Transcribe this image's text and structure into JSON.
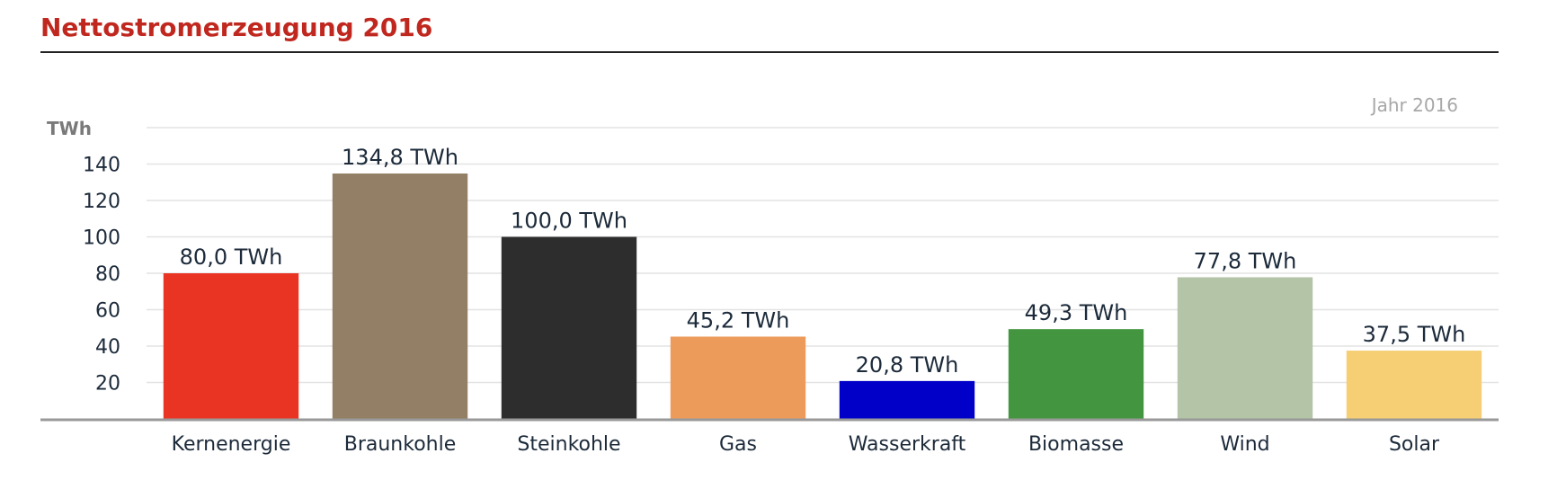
{
  "chart_data": {
    "type": "bar",
    "title": "Nettostromerzeugung 2016",
    "ylabel": "TWh",
    "period_label": "Jahr 2016",
    "categories": [
      "Kernenergie",
      "Braunkohle",
      "Steinkohle",
      "Gas",
      "Wasserkraft",
      "Biomasse",
      "Wind",
      "Solar"
    ],
    "values": [
      80.0,
      134.8,
      100.0,
      45.2,
      20.8,
      49.3,
      77.8,
      37.5
    ],
    "data_labels": [
      "80,0 TWh",
      "134,8 TWh",
      "100,0 TWh",
      "45,2 TWh",
      "20,8 TWh",
      "49,3 TWh",
      "77,8 TWh",
      "37,5 TWh"
    ],
    "colors": [
      "#e93323",
      "#927f66",
      "#2d2d2d",
      "#ec9b5b",
      "#0000c8",
      "#43953f",
      "#b3c4a7",
      "#f6cf74"
    ],
    "yticks": [
      20,
      40,
      60,
      80,
      100,
      120,
      140
    ],
    "ylim": [
      0,
      160
    ],
    "grid": true,
    "legend": "none"
  }
}
